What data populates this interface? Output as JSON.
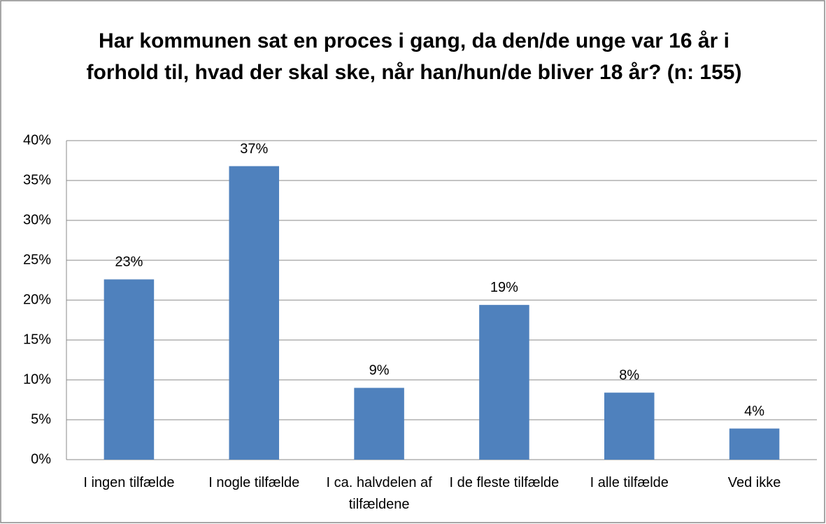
{
  "chart_data": {
    "type": "bar",
    "title": "Har kommunen sat en proces i gang, da den/de unge var 16 år i forhold til, hvad der skal ske, når han/hun/de bliver 18 år? (n: 155)",
    "categories": [
      "I ingen tilfælde",
      "I nogle tilfælde",
      "I ca. halvdelen af tilfældene",
      "I de fleste tilfælde",
      "I alle tilfælde",
      "Ved ikke"
    ],
    "values": [
      22.6,
      36.8,
      9.0,
      19.4,
      8.4,
      3.9
    ],
    "value_labels": [
      "23%",
      "37%",
      "9%",
      "19%",
      "8%",
      "4%"
    ],
    "color": "#4f81bd",
    "ylim": [
      0,
      40
    ],
    "yticks": [
      {
        "value": 0,
        "label": "0%"
      },
      {
        "value": 5,
        "label": "5%"
      },
      {
        "value": 10,
        "label": "10%"
      },
      {
        "value": 15,
        "label": "15%"
      },
      {
        "value": 20,
        "label": "20%"
      },
      {
        "value": 25,
        "label": "25%"
      },
      {
        "value": 30,
        "label": "30%"
      },
      {
        "value": 35,
        "label": "35%"
      },
      {
        "value": 40,
        "label": "40%"
      }
    ],
    "grid": true
  }
}
